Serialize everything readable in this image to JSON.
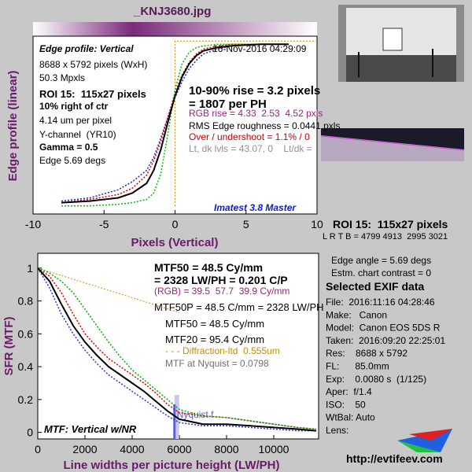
{
  "file_title": "_KNJ3680.jpg",
  "chart_data": [
    {
      "type": "line",
      "title": "Edge profile: Vertical",
      "xlabel": "Pixels (Vertical)",
      "ylabel": "Edge profile (linear)",
      "xlim": [
        -10,
        10
      ],
      "ylim": [
        -0.05,
        1.05
      ],
      "xticks": [
        -10,
        -5,
        0,
        5,
        10
      ],
      "x": [
        -8,
        -6,
        -4,
        -3,
        -2,
        -1.5,
        -1,
        -0.5,
        0,
        0.5,
        1,
        1.5,
        2,
        3,
        4,
        6,
        8
      ],
      "series": [
        {
          "color": "#2020d0",
          "dashed": true,
          "values": [
            0.03,
            0.05,
            0.1,
            0.15,
            0.22,
            0.3,
            0.42,
            0.55,
            0.67,
            0.77,
            0.85,
            0.9,
            0.94,
            0.97,
            0.99,
            1,
            1
          ]
        },
        {
          "color": "#e00000",
          "dashed": true,
          "values": [
            0.02,
            0.04,
            0.07,
            0.11,
            0.19,
            0.28,
            0.4,
            0.55,
            0.7,
            0.81,
            0.89,
            0.94,
            0.97,
            0.99,
            1,
            1,
            1
          ]
        },
        {
          "color": "#00c000",
          "dashed": true,
          "values": [
            0,
            0,
            0.01,
            0.02,
            0.04,
            0.08,
            0.2,
            0.45,
            0.72,
            0.88,
            0.95,
            0.98,
            0.99,
            1,
            1,
            1,
            1
          ]
        },
        {
          "color": "#000000",
          "dashed": false,
          "values": [
            0.02,
            0.03,
            0.05,
            0.08,
            0.14,
            0.22,
            0.35,
            0.52,
            0.68,
            0.8,
            0.88,
            0.93,
            0.96,
            0.98,
            0.99,
            1,
            1
          ]
        }
      ],
      "reference": {
        "color": "#d09000",
        "x": [
          0,
          0,
          10
        ],
        "values": [
          0,
          1.02,
          1.02
        ]
      },
      "annotations": [
        "16-Nov-2016 04:29:09",
        "8688 x 5792 pixels (WxH)",
        "50.3 Mpxls",
        "ROI 15:  115x27 pixels",
        "10% right of ctr",
        "4.14 um per pixel",
        "Y-channel  (YR10)",
        "Gamma = 0.5",
        "Edge 5.69 degs",
        "10-90% rise = 3.2 pixels",
        "= 1807 per PH",
        "RGB rise = 4.33  2.53  4.52 pxls",
        "RMS Edge roughness = 0.0441 pxls",
        "Over / undershoot = 1.1% / 0",
        "Lt, dk lvls = 43.07, 0    Lt/dk =",
        "Imatest 3.8 Master"
      ]
    },
    {
      "type": "line",
      "title": "MTF: Vertical w/NR",
      "xlabel": "Line widths per picture height (LW/PH)",
      "ylabel": "SFR (MTF)",
      "xlim": [
        0,
        11900
      ],
      "ylim": [
        -0.04,
        1.09
      ],
      "xticks": [
        0,
        2000,
        4000,
        6000,
        8000,
        10000
      ],
      "yticks": [
        0,
        0.2,
        0.4,
        0.6,
        0.8,
        1
      ],
      "x": [
        0,
        500,
        1000,
        1500,
        2000,
        2500,
        3000,
        3500,
        4000,
        4500,
        5000,
        5500,
        6000,
        7000,
        8000,
        9000,
        10000,
        11000,
        11800
      ],
      "series": [
        {
          "color": "#3030e0",
          "dashed": true,
          "values": [
            1,
            0.88,
            0.72,
            0.6,
            0.5,
            0.42,
            0.35,
            0.3,
            0.25,
            0.2,
            0.15,
            0.1,
            0.06,
            0.04,
            0.04,
            0.03,
            0.02,
            0.01,
            0.01
          ]
        },
        {
          "color": "#e00000",
          "dashed": true,
          "values": [
            1,
            0.95,
            0.85,
            0.72,
            0.6,
            0.52,
            0.45,
            0.4,
            0.35,
            0.3,
            0.24,
            0.17,
            0.12,
            0.1,
            0.09,
            0.07,
            0.05,
            0.03,
            0.02
          ]
        },
        {
          "color": "#00b000",
          "dashed": true,
          "values": [
            1,
            0.97,
            0.92,
            0.85,
            0.75,
            0.65,
            0.55,
            0.46,
            0.38,
            0.32,
            0.26,
            0.2,
            0.14,
            0.1,
            0.09,
            0.07,
            0.05,
            0.03,
            0.02
          ]
        },
        {
          "color": "#000000",
          "dashed": false,
          "values": [
            1,
            0.92,
            0.78,
            0.65,
            0.55,
            0.47,
            0.4,
            0.35,
            0.3,
            0.25,
            0.19,
            0.13,
            0.08,
            0.05,
            0.05,
            0.04,
            0.03,
            0.02,
            0.01
          ]
        }
      ],
      "reference": {
        "color": "#d09000",
        "x": [
          0,
          2000,
          4000,
          6000
        ],
        "values": [
          1,
          0.91,
          0.82,
          0.73
        ]
      },
      "nyquist": {
        "label": "Nyquist f",
        "x": 5792,
        "color": "#6060d0"
      },
      "annotations": [
        "MTF50 = 48.5 Cy/mm",
        "= 2328 LW/PH = 0.201 C/P",
        "(RGB) = 39.5  57.7  39.9 Cy/mm",
        "MTF50P = 48.5 C/mm = 2328 LW/PH",
        "MTF50 = 48.5 Cy/mm",
        "MTF20 = 95.4 Cy/mm",
        "- - - Diffraction-ltd  0.555um",
        "MTF at Nyquist = 0.0798"
      ]
    }
  ],
  "info_panel": {
    "roi": "ROI 15:  115x27 pixels",
    "lrtb": "L R T B = 4799 4913  2995 3021",
    "edge_angle": "Edge angle = 5.69 degs",
    "contrast": "Estm. chart contrast = 0",
    "exif_title": "Selected EXIF data",
    "exif": [
      "File:  2016:11:16 04:28:46",
      "Make:   Canon",
      "Model:  Canon EOS 5DS R",
      "Taken:  2016:09:20 22:25:01",
      "Res:    8688 x 5792",
      "FL:      85.0mm",
      "Exp:    0.0080 s  (1/125)",
      "Aper:  f/1.4",
      "ISO:    50",
      "WtBal: Auto",
      "Lens:"
    ],
    "url": "http://evtifeev.com"
  }
}
